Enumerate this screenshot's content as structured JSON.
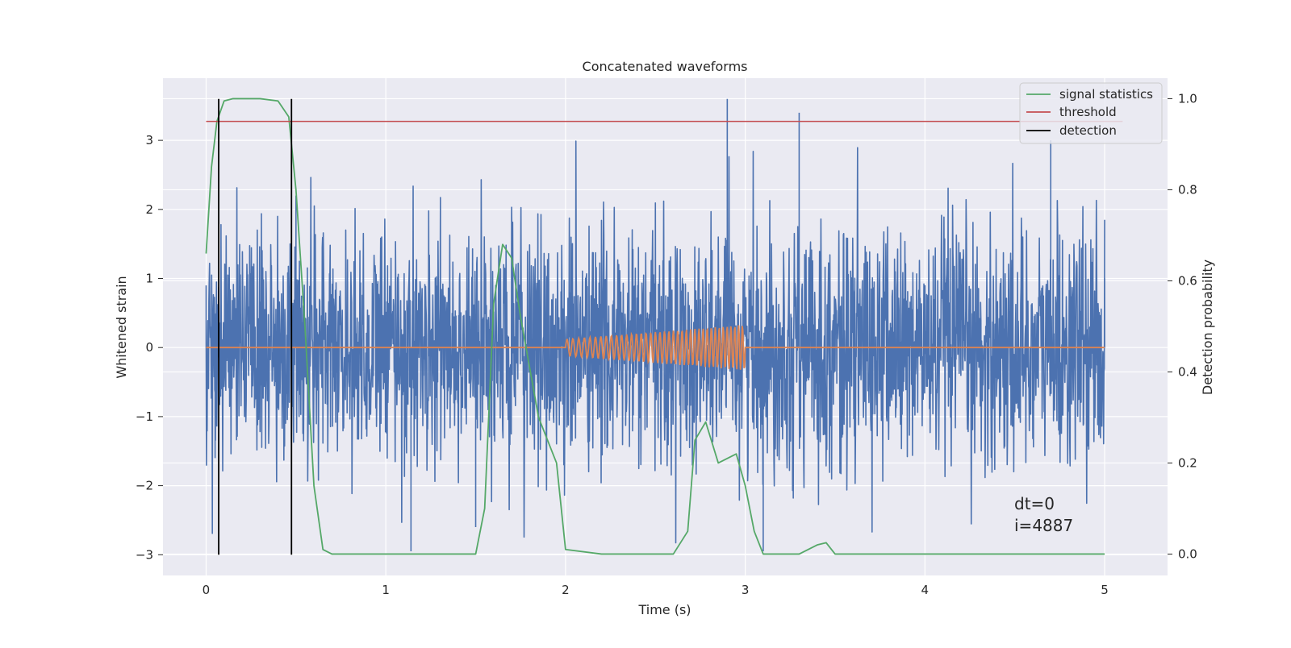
{
  "chart_data": {
    "type": "line",
    "title": "Concatenated waveforms",
    "xlabel": "Time (s)",
    "ylabel": "Whitened strain",
    "ylabel_right": "Detection probability",
    "xlim": [
      -0.24,
      5.35
    ],
    "ylim": [
      -3.3,
      3.9
    ],
    "ylim_right": [
      -0.047,
      1.045
    ],
    "x_ticks": [
      "0",
      "1",
      "2",
      "3",
      "4",
      "5"
    ],
    "y_ticks": [
      "−3",
      "−2",
      "−1",
      "0",
      "1",
      "2",
      "3"
    ],
    "y_ticks_right": [
      "0.0",
      "0.2",
      "0.4",
      "0.6",
      "0.8",
      "1.0"
    ],
    "grid": true,
    "legend_position": "top-right",
    "legend": [
      "signal statistics",
      "threshold",
      "detection"
    ],
    "annotations": [
      "dt=0",
      "i=4887"
    ],
    "colors": {
      "background": "#eaeaf2",
      "noise": "#4c72b0",
      "waveform": "#dd8452",
      "signal_statistics": "#55a868",
      "threshold": "#c44e52",
      "detection": "#000000"
    },
    "series": [
      {
        "name": "",
        "axis": "left",
        "description_points": [
          [
            0,
            0.9
          ],
          [
            0.05,
            -1.6
          ],
          [
            0.5,
            2.2
          ],
          [
            1.14,
            -2.95
          ],
          [
            1.5,
            -2.6
          ],
          [
            2.9,
            3.6
          ],
          [
            3.1,
            -2.95
          ],
          [
            3.3,
            3.4
          ],
          [
            4.7,
            3.0
          ],
          [
            5.0,
            1.0
          ]
        ]
      },
      {
        "name": "",
        "axis": "left",
        "x": [
          0,
          2.0,
          2.0,
          3.0,
          3.0,
          5.0
        ],
        "amplitude": [
          0,
          0,
          0.12,
          0.33,
          0,
          0
        ]
      },
      {
        "name": "signal statistics",
        "axis": "right",
        "x": [
          0,
          0.03,
          0.06,
          0.1,
          0.15,
          0.3,
          0.4,
          0.46,
          0.5,
          0.55,
          0.6,
          0.65,
          0.7,
          1.0,
          1.5,
          1.55,
          1.6,
          1.65,
          1.7,
          1.75,
          1.85,
          1.95,
          2.0,
          2.2,
          2.6,
          2.68,
          2.72,
          2.78,
          2.85,
          2.95,
          3.0,
          3.05,
          3.1,
          3.3,
          3.4,
          3.45,
          3.5,
          3.6,
          4.0,
          5.0
        ],
        "y": [
          0.66,
          0.85,
          0.95,
          0.995,
          1.0,
          1.0,
          0.995,
          0.96,
          0.8,
          0.5,
          0.15,
          0.01,
          0.0,
          0.0,
          0.0,
          0.1,
          0.55,
          0.68,
          0.65,
          0.52,
          0.3,
          0.2,
          0.01,
          0.0,
          0.0,
          0.05,
          0.25,
          0.29,
          0.2,
          0.22,
          0.15,
          0.05,
          0.0,
          0.0,
          0.02,
          0.025,
          0.0,
          0.0,
          0.0,
          0.0
        ]
      },
      {
        "name": "threshold",
        "axis": "right",
        "x": [
          0,
          5.1
        ],
        "y": [
          0.95,
          0.95
        ]
      },
      {
        "name": "detection",
        "axis": "left",
        "x_positions": [
          0.07,
          0.475
        ],
        "y_range": [
          -3.0,
          3.6
        ]
      }
    ]
  }
}
